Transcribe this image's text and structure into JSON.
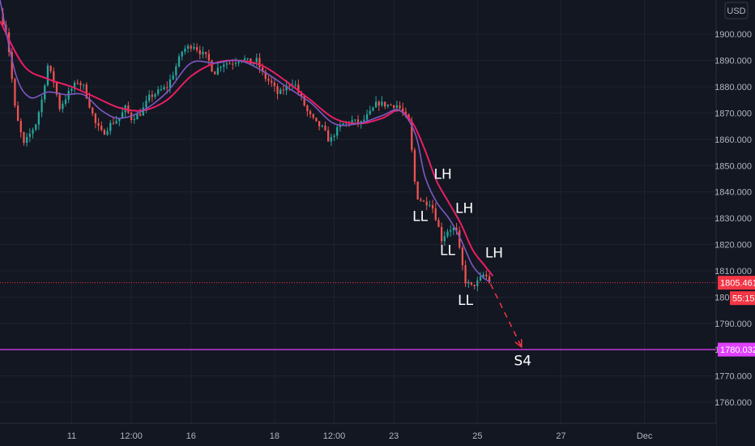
{
  "chart_data": {
    "type": "candlestick",
    "currency": "USD",
    "ylim": [
      1752,
      1913
    ],
    "y_ticks": [
      1760,
      1770,
      1780,
      1790,
      1800,
      1810,
      1820,
      1830,
      1840,
      1850,
      1860,
      1870,
      1880,
      1890,
      1900
    ],
    "y_tick_labels": [
      "1760.000",
      "1770.000",
      "1780.000",
      "1790.000",
      "1800.000",
      "1810.000",
      "1820.000",
      "1830.000",
      "1840.000",
      "1850.000",
      "1860.000",
      "1870.000",
      "1880.000",
      "1890.000",
      "1900.000"
    ],
    "x_range_days": [
      0,
      60
    ],
    "x_ticks": [
      {
        "label": "11",
        "t": 6
      },
      {
        "label": "12:00",
        "t": 11
      },
      {
        "label": "16",
        "t": 16
      },
      {
        "label": "18",
        "t": 23
      },
      {
        "label": "12:00",
        "t": 28
      },
      {
        "label": "23",
        "t": 33
      },
      {
        "label": "25",
        "t": 40
      },
      {
        "label": "27",
        "t": 47
      },
      {
        "label": "Dec",
        "t": 54
      }
    ],
    "close_path": [
      [
        0,
        1908
      ],
      [
        0.6,
        1900
      ],
      [
        1.3,
        1870
      ],
      [
        2,
        1858
      ],
      [
        3,
        1866
      ],
      [
        3.5,
        1875
      ],
      [
        4,
        1888
      ],
      [
        4.5,
        1882
      ],
      [
        5,
        1872
      ],
      [
        5.8,
        1878
      ],
      [
        6.5,
        1882
      ],
      [
        7,
        1880
      ],
      [
        7.5,
        1873
      ],
      [
        8,
        1866
      ],
      [
        8.6,
        1862
      ],
      [
        9.3,
        1866
      ],
      [
        10,
        1868
      ],
      [
        10.5,
        1872
      ],
      [
        11,
        1868
      ],
      [
        11.8,
        1870
      ],
      [
        12.5,
        1876
      ],
      [
        13.2,
        1878
      ],
      [
        14,
        1880
      ],
      [
        14.6,
        1886
      ],
      [
        15.3,
        1894
      ],
      [
        16.2,
        1896
      ],
      [
        16.8,
        1893
      ],
      [
        17.4,
        1891
      ],
      [
        17.9,
        1885
      ],
      [
        18.6,
        1889
      ],
      [
        19.4,
        1889
      ],
      [
        20.3,
        1891
      ],
      [
        21,
        1889
      ],
      [
        21.5,
        1890
      ],
      [
        22.1,
        1884
      ],
      [
        22.8,
        1881
      ],
      [
        23.3,
        1877
      ],
      [
        24,
        1880
      ],
      [
        24.6,
        1882
      ],
      [
        25.2,
        1876
      ],
      [
        25.8,
        1870
      ],
      [
        26.5,
        1866
      ],
      [
        27.1,
        1864
      ],
      [
        27.6,
        1859
      ],
      [
        28.1,
        1863
      ],
      [
        28.8,
        1866
      ],
      [
        29.5,
        1867
      ],
      [
        30.2,
        1866
      ],
      [
        31,
        1870
      ],
      [
        31.6,
        1874
      ],
      [
        32.4,
        1873
      ],
      [
        33.3,
        1873
      ],
      [
        33.8,
        1870
      ],
      [
        34.3,
        1866
      ],
      [
        34.7,
        1845
      ],
      [
        35,
        1838
      ],
      [
        35.5,
        1836
      ],
      [
        36.1,
        1836
      ],
      [
        36.6,
        1829
      ],
      [
        37,
        1822
      ],
      [
        37.6,
        1826
      ],
      [
        38.2,
        1826
      ],
      [
        38.6,
        1815
      ],
      [
        39,
        1806
      ],
      [
        39.5,
        1804
      ],
      [
        40.1,
        1806
      ],
      [
        40.6,
        1809
      ],
      [
        41.1,
        1805
      ]
    ],
    "ema_fast_path": [
      [
        0,
        1913
      ],
      [
        1.3,
        1885
      ],
      [
        2.5,
        1876
      ],
      [
        4,
        1878
      ],
      [
        5.5,
        1877
      ],
      [
        7,
        1877
      ],
      [
        8.5,
        1871
      ],
      [
        10,
        1868
      ],
      [
        12,
        1871
      ],
      [
        14,
        1878
      ],
      [
        16,
        1889
      ],
      [
        18,
        1889
      ],
      [
        20,
        1890
      ],
      [
        22,
        1886
      ],
      [
        24,
        1880
      ],
      [
        26,
        1874
      ],
      [
        28,
        1866
      ],
      [
        30,
        1866
      ],
      [
        32,
        1869
      ],
      [
        33.5,
        1871
      ],
      [
        34.8,
        1862
      ],
      [
        35.6,
        1846
      ],
      [
        36.6,
        1836
      ],
      [
        37.6,
        1830
      ],
      [
        38.6,
        1822
      ],
      [
        39.6,
        1812
      ],
      [
        40.6,
        1807
      ],
      [
        41.1,
        1806
      ]
    ],
    "ema_slow_path": [
      [
        0,
        1905
      ],
      [
        2,
        1888
      ],
      [
        4,
        1883
      ],
      [
        6,
        1880
      ],
      [
        8,
        1876
      ],
      [
        10,
        1872
      ],
      [
        12,
        1871
      ],
      [
        14,
        1875
      ],
      [
        16,
        1884
      ],
      [
        18,
        1889
      ],
      [
        20,
        1890
      ],
      [
        22,
        1888
      ],
      [
        24,
        1882
      ],
      [
        26,
        1875
      ],
      [
        28,
        1868
      ],
      [
        30,
        1866
      ],
      [
        32,
        1868
      ],
      [
        33.4,
        1871
      ],
      [
        34.6,
        1866
      ],
      [
        35.6,
        1856
      ],
      [
        36.6,
        1844
      ],
      [
        37.6,
        1836
      ],
      [
        38.6,
        1828
      ],
      [
        39.6,
        1818
      ],
      [
        40.6,
        1812
      ],
      [
        41.3,
        1808
      ]
    ],
    "current_price": 1805.461,
    "current_price_label": "1805.461",
    "countdown_label": "55:15",
    "target_level": 1780.032,
    "target_label": "1780.032",
    "projection": {
      "from": [
        41.1,
        1805
      ],
      "to": [
        43.7,
        1781
      ]
    },
    "annotations": [
      {
        "text": "LH",
        "t": 37.1,
        "y": 1845
      },
      {
        "text": "LL",
        "t": 35.2,
        "y": 1829
      },
      {
        "text": "LH",
        "t": 38.9,
        "y": 1832
      },
      {
        "text": "LL",
        "t": 37.5,
        "y": 1816
      },
      {
        "text": "LH",
        "t": 41.4,
        "y": 1815
      },
      {
        "text": "LL",
        "t": 39.0,
        "y": 1797
      },
      {
        "text": "S4",
        "t": 43.8,
        "y": 1774
      }
    ],
    "colors": {
      "background": "#131722",
      "grid": "#1f2330",
      "bull": "#26a69a",
      "bear": "#ef5350",
      "ema_fast": "#7e57c2",
      "ema_slow": "#e91e63",
      "target_line": "#e040fb",
      "price_tag": "#f23645",
      "projection": "#f23645",
      "axis_text": "#b2b5be"
    }
  }
}
